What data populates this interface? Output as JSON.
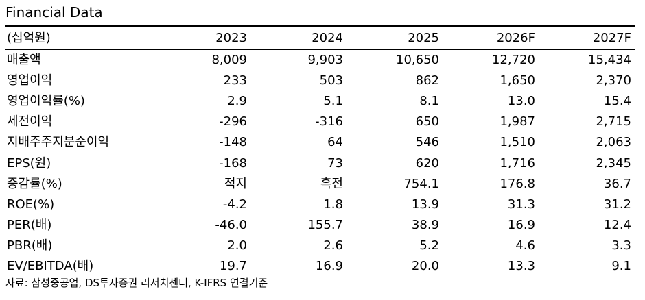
{
  "title": "Financial Data",
  "table": {
    "columns": [
      "(십억원)",
      "2023",
      "2024",
      "2025",
      "2026F",
      "2027F"
    ],
    "rows": [
      {
        "label": "매출액",
        "values": [
          "8,009",
          "9,903",
          "10,650",
          "12,720",
          "15,434"
        ]
      },
      {
        "label": "영업이익",
        "values": [
          "233",
          "503",
          "862",
          "1,650",
          "2,370"
        ]
      },
      {
        "label": "영업이익률(%)",
        "values": [
          "2.9",
          "5.1",
          "8.1",
          "13.0",
          "15.4"
        ]
      },
      {
        "label": "세전이익",
        "values": [
          "-296",
          "-316",
          "650",
          "1,987",
          "2,715"
        ]
      },
      {
        "label": "지배주주지분순이익",
        "values": [
          "-148",
          "64",
          "546",
          "1,510",
          "2,063"
        ]
      },
      {
        "label": "EPS(원)",
        "values": [
          "-168",
          "73",
          "620",
          "1,716",
          "2,345"
        ]
      },
      {
        "label": "증감률(%)",
        "values": [
          "적지",
          "흑전",
          "754.1",
          "176.8",
          "36.7"
        ]
      },
      {
        "label": "ROE(%)",
        "values": [
          "-4.2",
          "1.8",
          "13.9",
          "31.3",
          "31.2"
        ]
      },
      {
        "label": "PER(배)",
        "values": [
          "-46.0",
          "155.7",
          "38.9",
          "16.9",
          "12.4"
        ]
      },
      {
        "label": "PBR(배)",
        "values": [
          "2.0",
          "2.6",
          "5.2",
          "4.6",
          "3.3"
        ]
      },
      {
        "label": "EV/EBITDA(배)",
        "values": [
          "19.7",
          "16.9",
          "20.0",
          "13.3",
          "9.1"
        ]
      }
    ]
  },
  "source": "자료: 삼성중공업, DS투자증권 리서치센터, K-IFRS 연결기준"
}
